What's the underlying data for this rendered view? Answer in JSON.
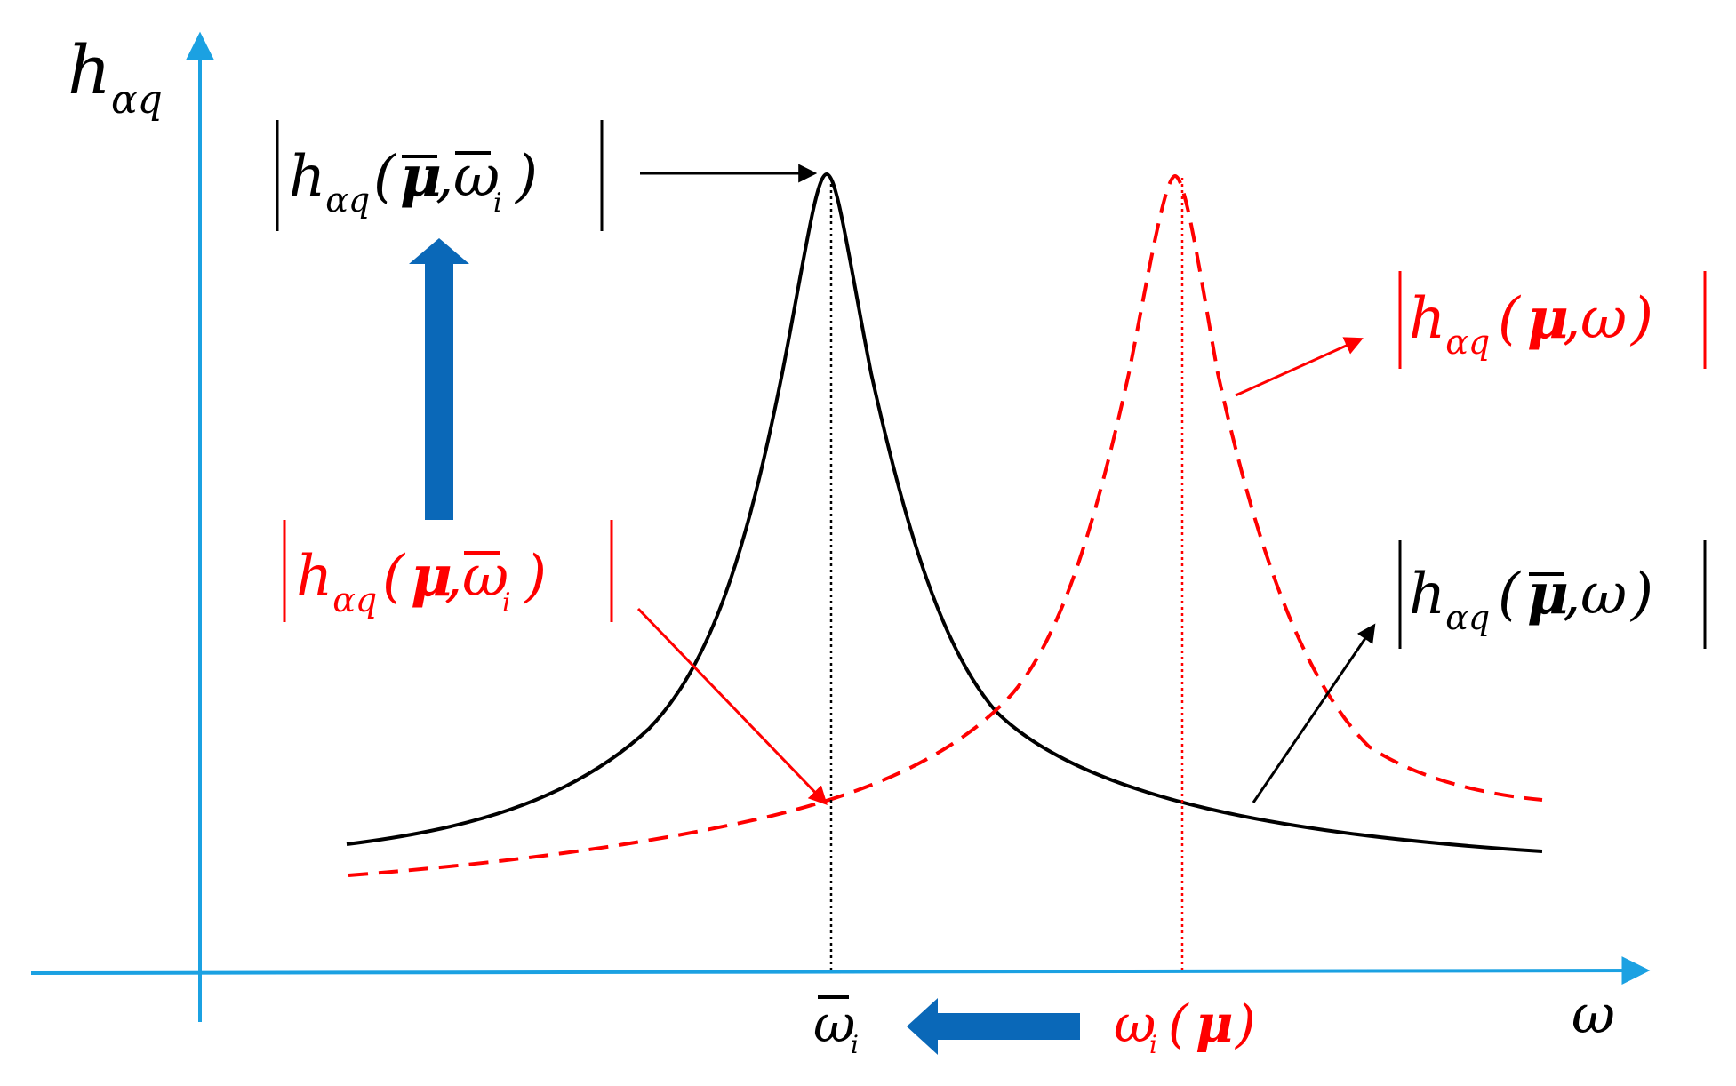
{
  "axes": {
    "y_label_main": "h",
    "y_label_sub": "αq",
    "x_label": "ω"
  },
  "labels": {
    "abs_bar_mu_bar_omega_i": {
      "h": "h",
      "sub": "αq",
      "open": "(",
      "arg1": "μ",
      "comma": ",",
      "arg2": "ω",
      "arg2_sub": "i",
      "close": ")"
    },
    "abs_mu_omega": {
      "h": "h",
      "sub": "αq",
      "open": "(",
      "arg1": "μ",
      "comma": ",",
      "arg2": "ω",
      "close": ")"
    },
    "abs_mu_bar_omega_i": {
      "h": "h",
      "sub": "αq",
      "open": "(",
      "arg1": "μ",
      "comma": ",",
      "arg2": "ω",
      "arg2_sub": "i",
      "close": ")"
    },
    "abs_bar_mu_omega": {
      "h": "h",
      "sub": "αq",
      "open": "(",
      "arg1": "μ",
      "comma": ",",
      "arg2": "ω",
      "close": ")"
    },
    "tick_bar_omega_i": {
      "main": "ω",
      "sub": "i"
    },
    "tick_omega_i_mu": {
      "main": "ω",
      "sub": "i",
      "open": "(",
      "arg": "μ",
      "close": ")"
    }
  },
  "colors": {
    "axis": "#1ba1e2",
    "black_curve": "#000000",
    "red_curve": "#ff0000",
    "blue_arrow": "#0a68b8",
    "label_black": "#000000",
    "label_red": "#ff0000"
  }
}
